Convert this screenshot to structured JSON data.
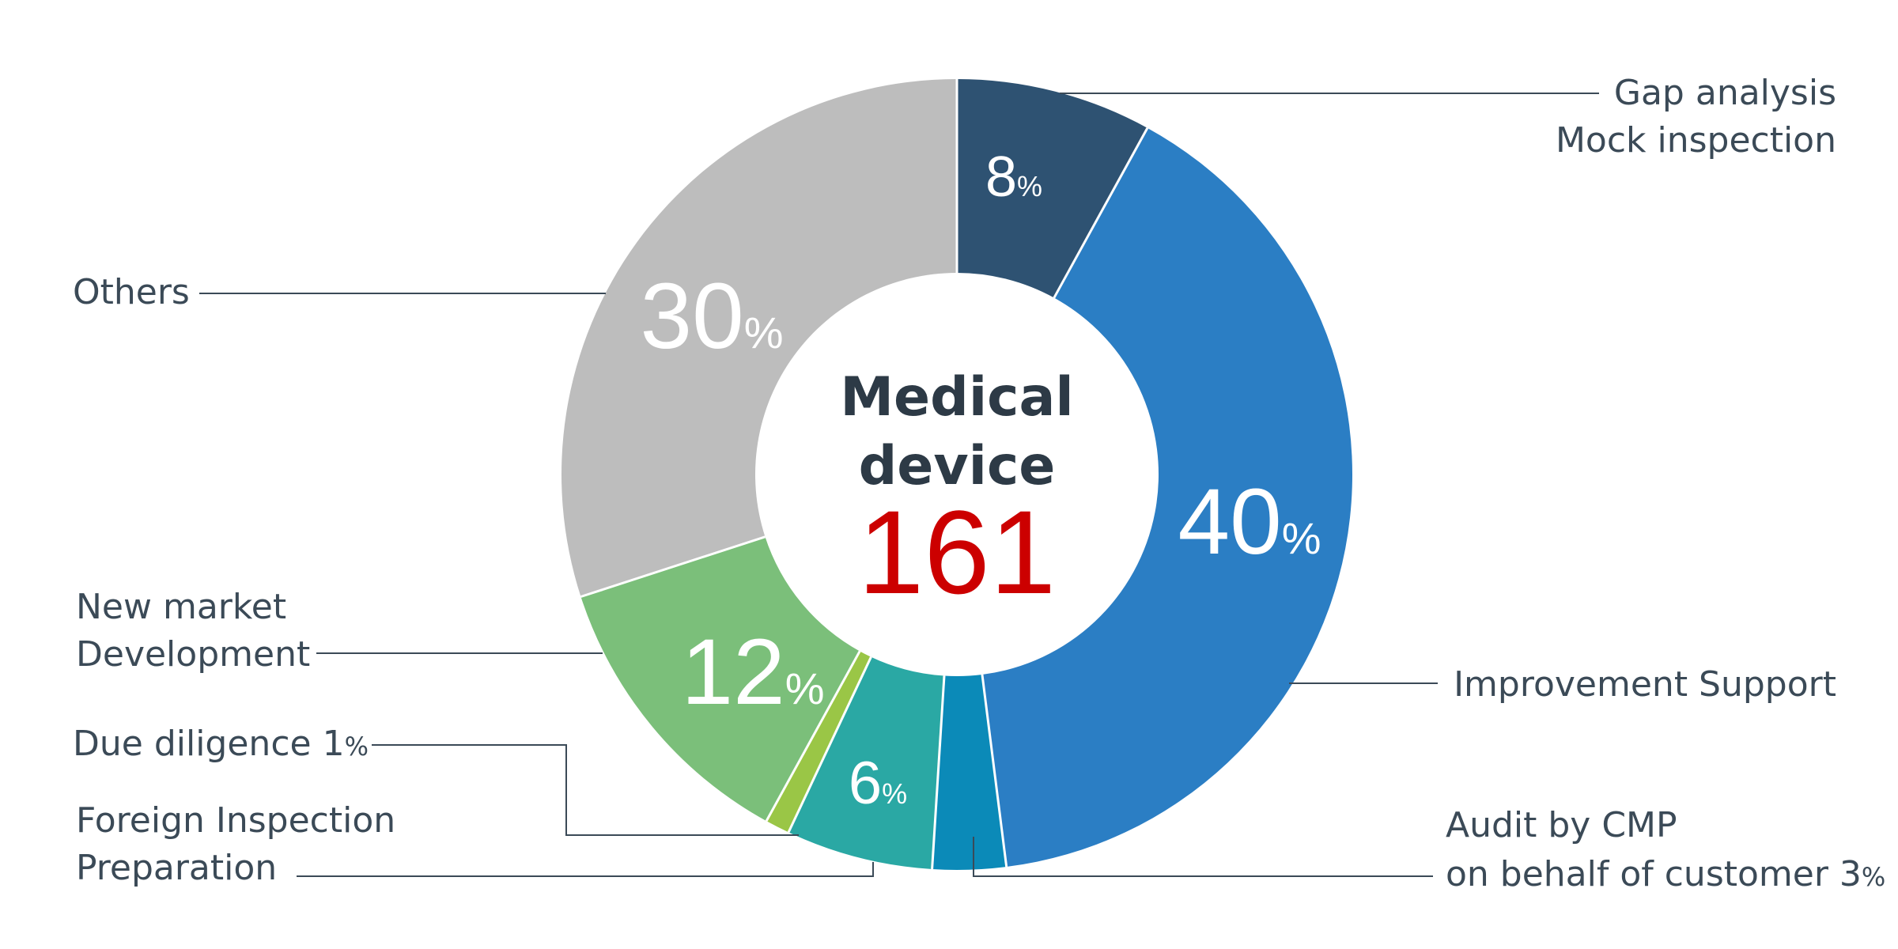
{
  "chart_data": {
    "type": "pie",
    "center": {
      "title_line1": "Medical",
      "title_line2": "device",
      "total": "161"
    },
    "slices": [
      {
        "label": "Gap  analysis / Mock inspection",
        "value": 8,
        "color": "#2e5272"
      },
      {
        "label": "Improvement Support",
        "value": 40,
        "color": "#2b7ec4"
      },
      {
        "label": "Audit by CMP on behalf of customer",
        "value": 3,
        "color": "#0b8ab8"
      },
      {
        "label": "Foreign Inspection Preparation",
        "value": 6,
        "color": "#2aa8a4"
      },
      {
        "label": "Due diligence",
        "value": 1,
        "color": "#9ac646"
      },
      {
        "label": "New market Development",
        "value": 12,
        "color": "#7bbf7a"
      },
      {
        "label": "Others",
        "value": 30,
        "color": "#bdbdbd"
      }
    ],
    "slice_labels": {
      "gap": {
        "num": "8",
        "unit": "%"
      },
      "improvement": {
        "num": "40",
        "unit": "%"
      },
      "foreign": {
        "num": "6",
        "unit": "%"
      },
      "newmarket": {
        "num": "12",
        "unit": "%"
      },
      "others": {
        "num": "30",
        "unit": "%"
      }
    },
    "callouts": {
      "gap_line1": "Gap  analysis",
      "gap_line2": "Mock inspection",
      "improvement": "Improvement Support",
      "audit_line1": "Audit by CMP",
      "audit_line2": "on behalf of customer 3",
      "audit_unit": "%",
      "foreign_line1": "Foreign Inspection",
      "foreign_line2": "Preparation",
      "due": "Due diligence 1",
      "due_unit": "%",
      "newmarket_line1": "New market",
      "newmarket_line2": "Development",
      "others": "Others"
    }
  }
}
